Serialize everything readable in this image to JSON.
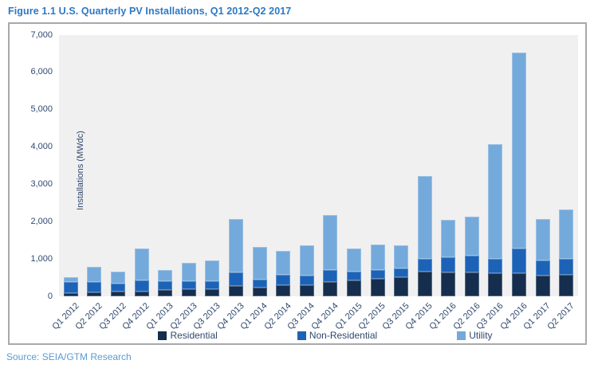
{
  "title": "Figure 1.1 U.S. Quarterly PV Installations, Q1 2012-Q2 2017",
  "source": "Source: SEIA/GTM Research",
  "colors": {
    "title_text": "#2D78C5",
    "axis_text": "#31496E",
    "source_text": "#5B9BD5",
    "plot_background": "#F0F0F0",
    "box_border": "#A9A9A9",
    "residential": "#162E4D",
    "non_residential": "#1C63B7",
    "utility": "#74A9DB"
  },
  "chart_data": {
    "type": "bar",
    "stacked": true,
    "title": "Figure 1.1 U.S. Quarterly PV Installations, Q1 2012-Q2 2017",
    "xlabel": "",
    "ylabel": "Installations (MWdc)",
    "ylim": [
      0,
      7000
    ],
    "ytick_interval": 1000,
    "yticklabels": [
      "0",
      "1,000",
      "2,000",
      "3,000",
      "4,000",
      "5,000",
      "6,000",
      "7,000"
    ],
    "grid": false,
    "legend_position": "bottom",
    "categories": [
      "Q1 2012",
      "Q2 2012",
      "Q3 2012",
      "Q4 2012",
      "Q1 2013",
      "Q2 2013",
      "Q3 2013",
      "Q4 2013",
      "Q1 2014",
      "Q2 2014",
      "Q3 2014",
      "Q4 2014",
      "Q1 2015",
      "Q2 2015",
      "Q3 2015",
      "Q4 2015",
      "Q1 2016",
      "Q2 2016",
      "Q3 2016",
      "Q4 2016",
      "Q1 2017",
      "Q2 2017"
    ],
    "series": [
      {
        "name": "Residential",
        "color": "#162E4D",
        "values": [
          95,
          100,
          120,
          130,
          165,
          185,
          185,
          270,
          230,
          310,
          300,
          395,
          435,
          465,
          520,
          670,
          650,
          650,
          625,
          625,
          565,
          575
        ]
      },
      {
        "name": "Non-Residential",
        "color": "#1C63B7",
        "values": [
          290,
          275,
          225,
          290,
          235,
          220,
          230,
          380,
          225,
          260,
          245,
          320,
          225,
          250,
          235,
          325,
          390,
          430,
          375,
          650,
          400,
          435
        ]
      },
      {
        "name": "Utility",
        "color": "#74A9DB",
        "values": [
          125,
          405,
          310,
          855,
          310,
          495,
          535,
          1410,
          865,
          650,
          815,
          1455,
          620,
          670,
          615,
          2225,
          1000,
          1065,
          3080,
          5245,
          1110,
          1310
        ]
      }
    ],
    "totals": [
      510,
      780,
      655,
      1275,
      710,
      900,
      950,
      2060,
      1320,
      1220,
      1360,
      2170,
      1280,
      1385,
      1370,
      3220,
      2040,
      2145,
      4080,
      6520,
      2075,
      2320
    ]
  }
}
